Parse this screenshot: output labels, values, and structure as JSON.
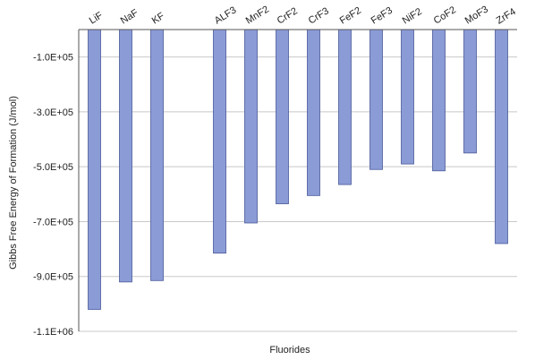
{
  "chart_data": {
    "type": "bar",
    "title": "",
    "xlabel": "Fluorides",
    "ylabel": "Gibbs Free Energy of Formation (J/mol)",
    "categories": [
      "LiF",
      "NaF",
      "KF",
      "ALF3",
      "MnF2",
      "CrF2",
      "CrF3",
      "FeF2",
      "FeF3",
      "NiF2",
      "CoF2",
      "MoF3",
      "ZrF4"
    ],
    "values": [
      -1020000,
      -920000,
      -915000,
      -815000,
      -705000,
      -635000,
      -605000,
      -565000,
      -510000,
      -490000,
      -515000,
      -450000,
      -780000
    ],
    "ylim": [
      -1100000,
      0
    ],
    "yticks": [
      -100000,
      -300000,
      -500000,
      -700000,
      -900000,
      -1100000
    ],
    "ytick_labels": [
      "-1.0E+05",
      "-3.0E+05",
      "-5.0E+05",
      "-7.0E+05",
      "-9.0E+05",
      "-1.1E+06"
    ],
    "category_group_gap_after": [
      "KF"
    ],
    "grid": true,
    "colors": {
      "bar_fill": "#8a9bd6",
      "bar_stroke": "#4a5a99",
      "grid": "#c8c8c8",
      "axis": "#555555"
    }
  }
}
